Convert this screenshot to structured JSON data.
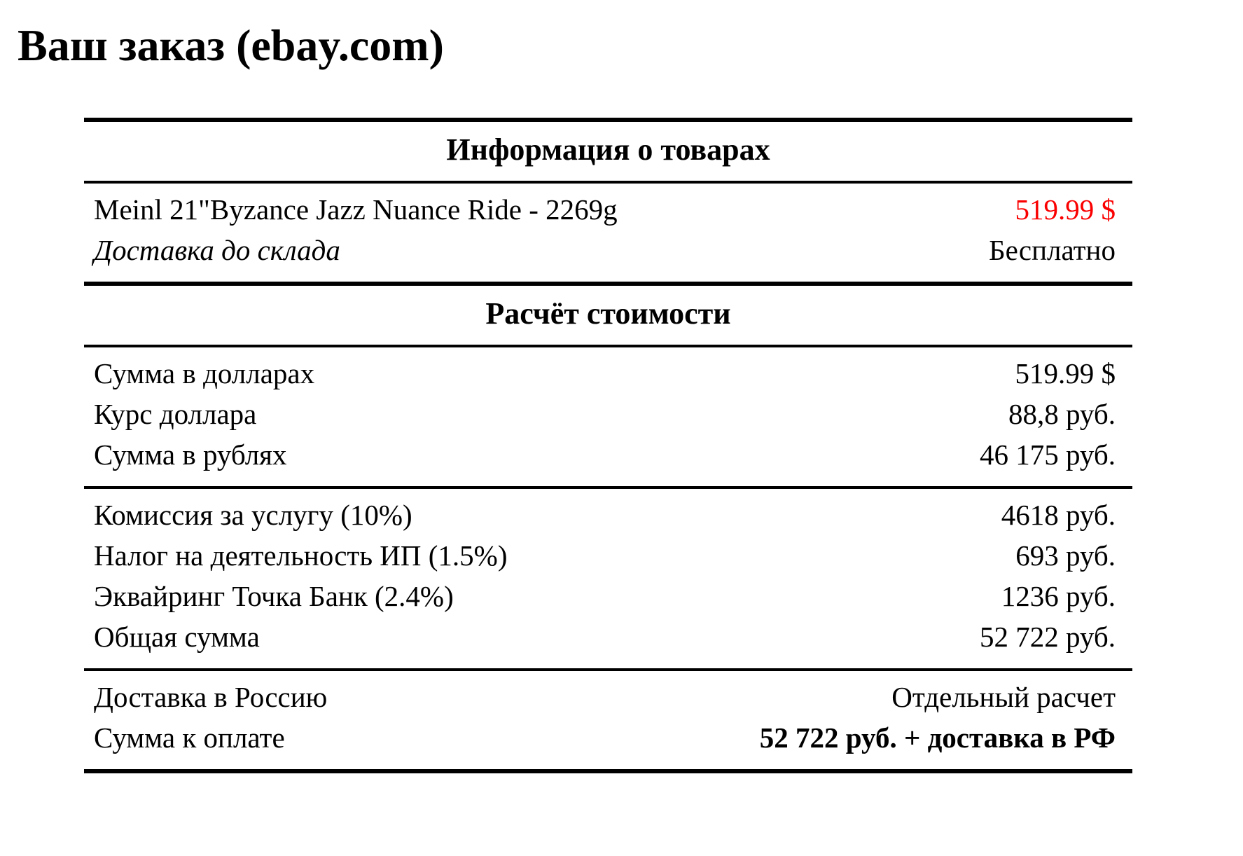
{
  "page_title": "Ваш заказ (ebay.com)",
  "colors": {
    "accent_red": "#fa0000",
    "text": "#000000",
    "background": "#ffffff",
    "rule": "#000000"
  },
  "table": {
    "products": {
      "header": "Информация о товарах",
      "rows": [
        {
          "label": "Meinl 21\"Byzance Jazz Nuance Ride - 2269g",
          "value": "519.99 $"
        },
        {
          "label": "Доставка до склада",
          "value": "Бесплатно"
        }
      ]
    },
    "costs": {
      "header": "Расчёт стоимости",
      "conversion_rows": [
        {
          "label": "Сумма в долларах",
          "value": "519.99 $"
        },
        {
          "label": "Курс доллара",
          "value": "88,8 руб."
        },
        {
          "label": "Сумма в рублях",
          "value": "46 175 руб."
        }
      ],
      "fee_rows": [
        {
          "label": "Комиссия за услугу (10%)",
          "value": "4618 руб."
        },
        {
          "label": "Налог на деятельность ИП (1.5%)",
          "value": "693 руб."
        },
        {
          "label": "Эквайринг Точка Банк (2.4%)",
          "value": "1236 руб."
        },
        {
          "label": "Общая сумма",
          "value": "52 722 руб."
        }
      ],
      "total_rows": [
        {
          "label": "Доставка в Россию",
          "value": "Отдельный расчет"
        },
        {
          "label": "Сумма к оплате",
          "value": "52 722 руб. + доставка в РФ"
        }
      ]
    }
  }
}
